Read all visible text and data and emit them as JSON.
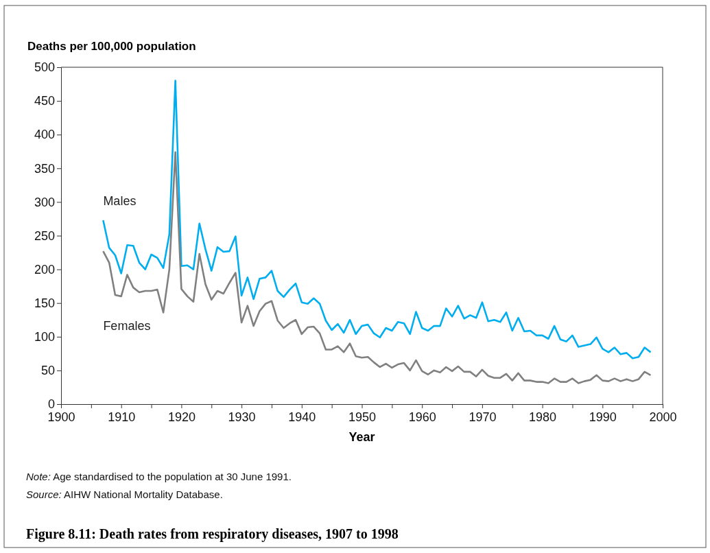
{
  "chart_data": {
    "type": "line",
    "title": "Figure 8.11: Death rates from respiratory diseases, 1907 to 1998",
    "xlabel": "Year",
    "ylabel": "Deaths per 100,000 population",
    "x": [
      1907,
      1908,
      1909,
      1910,
      1911,
      1912,
      1913,
      1914,
      1915,
      1916,
      1917,
      1918,
      1919,
      1920,
      1921,
      1922,
      1923,
      1924,
      1925,
      1926,
      1927,
      1928,
      1929,
      1930,
      1931,
      1932,
      1933,
      1934,
      1935,
      1936,
      1937,
      1938,
      1939,
      1940,
      1941,
      1942,
      1943,
      1944,
      1945,
      1946,
      1947,
      1948,
      1949,
      1950,
      1951,
      1952,
      1953,
      1954,
      1955,
      1956,
      1957,
      1958,
      1959,
      1960,
      1961,
      1962,
      1963,
      1964,
      1965,
      1966,
      1967,
      1968,
      1969,
      1970,
      1971,
      1972,
      1973,
      1974,
      1975,
      1976,
      1977,
      1978,
      1979,
      1980,
      1981,
      1982,
      1983,
      1984,
      1985,
      1986,
      1987,
      1988,
      1989,
      1990,
      1991,
      1992,
      1993,
      1994,
      1995,
      1996,
      1997,
      1998
    ],
    "series": [
      {
        "name": "Males",
        "color": "#00aeef",
        "values": [
          273,
          232,
          221,
          194,
          236,
          235,
          210,
          200,
          222,
          217,
          202,
          252,
          480,
          205,
          206,
          200,
          268,
          230,
          198,
          233,
          226,
          227,
          249,
          161,
          188,
          156,
          186,
          188,
          198,
          168,
          159,
          170,
          179,
          151,
          149,
          157,
          149,
          124,
          110,
          119,
          106,
          125,
          104,
          116,
          118,
          105,
          99,
          113,
          109,
          122,
          120,
          104,
          137,
          113,
          109,
          116,
          116,
          142,
          130,
          146,
          127,
          132,
          128,
          151,
          123,
          125,
          122,
          136,
          109,
          128,
          108,
          109,
          102,
          102,
          97,
          116,
          96,
          93,
          102,
          85,
          87,
          89,
          99,
          82,
          77,
          84,
          74,
          76,
          68,
          70,
          84,
          77
        ]
      },
      {
        "name": "Females",
        "color": "#808080",
        "values": [
          227,
          210,
          162,
          160,
          192,
          173,
          166,
          168,
          168,
          170,
          136,
          200,
          374,
          171,
          160,
          152,
          223,
          178,
          155,
          168,
          164,
          180,
          195,
          121,
          146,
          116,
          138,
          149,
          153,
          124,
          113,
          120,
          125,
          104,
          114,
          115,
          105,
          81,
          81,
          86,
          77,
          90,
          71,
          69,
          70,
          62,
          55,
          60,
          54,
          59,
          61,
          50,
          65,
          49,
          44,
          50,
          47,
          55,
          49,
          56,
          48,
          48,
          41,
          51,
          42,
          39,
          39,
          45,
          35,
          46,
          35,
          35,
          33,
          33,
          31,
          38,
          33,
          33,
          38,
          31,
          34,
          36,
          43,
          35,
          34,
          38,
          34,
          37,
          34,
          37,
          48,
          43
        ]
      }
    ],
    "xlim": [
      1900,
      2000
    ],
    "xticks": [
      1900,
      {
        "value": 1905,
        "label": null
      },
      1910,
      {
        "value": 1915,
        "label": null
      },
      1920,
      {
        "value": 1925,
        "label": null
      },
      1930,
      {
        "value": 1935,
        "label": null
      },
      1940,
      {
        "value": 1945,
        "label": null
      },
      1950,
      {
        "value": 1955,
        "label": null
      },
      1960,
      {
        "value": 1965,
        "label": null
      },
      1970,
      {
        "value": 1975,
        "label": null
      },
      1980,
      {
        "value": 1985,
        "label": null
      },
      1990,
      {
        "value": 1995,
        "label": null
      },
      2000
    ],
    "ylim": [
      0,
      500
    ],
    "yticks": [
      0,
      50,
      100,
      150,
      200,
      250,
      300,
      350,
      400,
      450,
      500
    ],
    "grid": false,
    "legend": false,
    "line_style": "solid",
    "marker": "none",
    "annotations": [
      "Note: Age standardised to the population at 30 June 1991.",
      "Source: AIHW National Mortality Database."
    ]
  }
}
